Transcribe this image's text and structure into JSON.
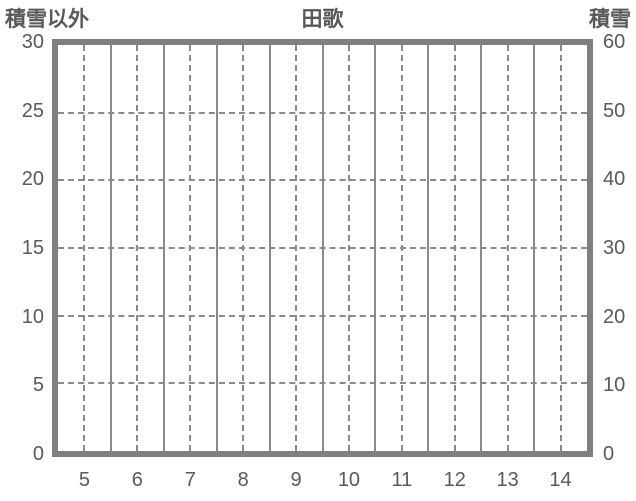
{
  "chart_data": {
    "type": "line",
    "title": "田歌",
    "series": [],
    "x_axis": {
      "categories": [
        "5",
        "6",
        "7",
        "8",
        "9",
        "10",
        "11",
        "12",
        "13",
        "14"
      ]
    },
    "left_axis": {
      "title": "積雪以外",
      "min": 0,
      "max": 30,
      "step": 5,
      "ticks": [
        0,
        5,
        10,
        15,
        20,
        25,
        30
      ]
    },
    "right_axis": {
      "title": "積雪",
      "min": 0,
      "max": 60,
      "step": 10,
      "ticks": [
        0,
        10,
        20,
        30,
        40,
        50,
        60
      ]
    },
    "grid": {
      "horizontal_dashed_at_left_values": [
        5,
        10,
        15,
        20,
        25
      ],
      "vertical_solid": "category-boundaries",
      "vertical_dashed": "category-centers"
    },
    "legend": "none",
    "plot_background": "empty"
  },
  "colors": {
    "text": "#595959",
    "plot_border": "#7f7f7f",
    "gridline": "#8a8a8a",
    "background": "#ffffff"
  }
}
